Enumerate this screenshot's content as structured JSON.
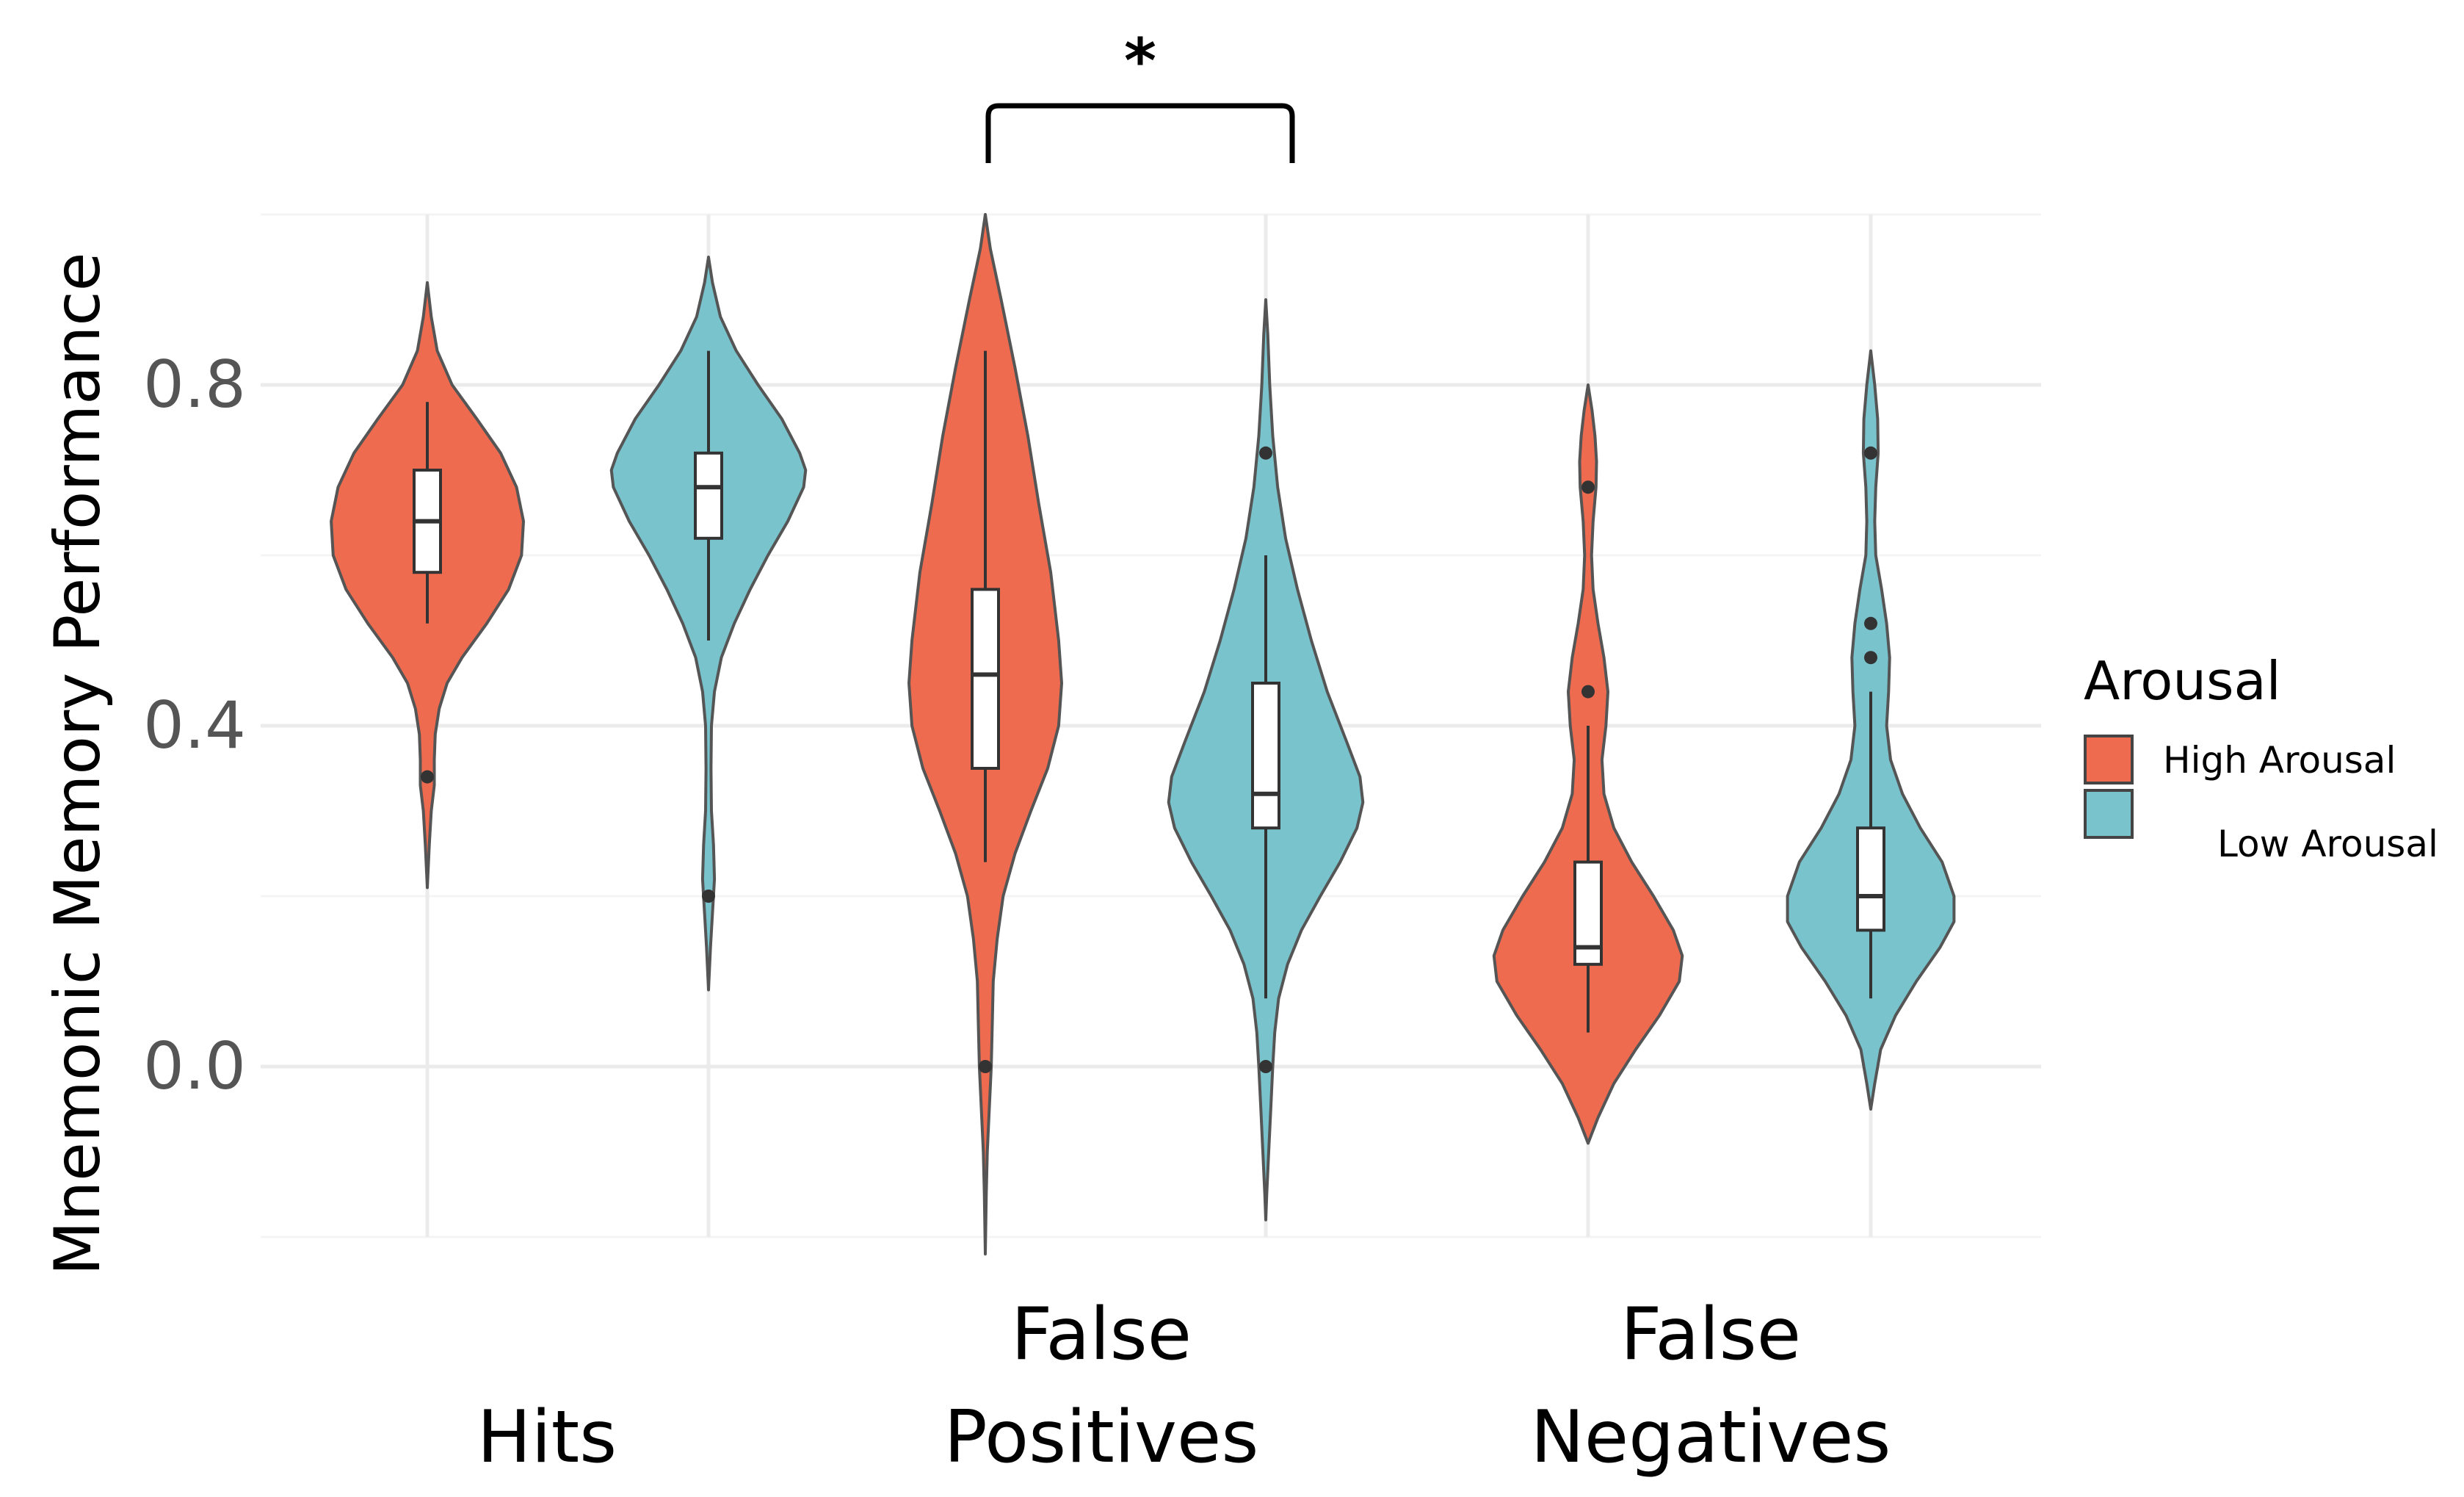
{
  "chart_data": {
    "type": "violin",
    "ylabel": "Mnemonic Memory Performance",
    "xlabel": "",
    "ylim": [
      -0.2,
      1.0
    ],
    "yticks": [
      0.0,
      0.4,
      0.8
    ],
    "ytick_labels": [
      "0.0",
      "0.4",
      "0.8"
    ],
    "categories": [
      {
        "name": "Hits",
        "lines": [
          "Hits"
        ]
      },
      {
        "name": "False Positives",
        "lines": [
          "False",
          "Positives"
        ]
      },
      {
        "name": "False Negatives",
        "lines": [
          "False",
          "Negatives"
        ]
      }
    ],
    "legend": {
      "title": "Arousal",
      "position": "right",
      "entries": [
        {
          "label": "High Arousal",
          "color": "#EE6B4F"
        },
        {
          "label": "Low Arousal",
          "color": "#79C3CD"
        }
      ]
    },
    "significance": {
      "between": [
        "False Positives - High Arousal",
        "False Positives - Low Arousal"
      ],
      "label": "*"
    },
    "series": [
      {
        "category": "Hits",
        "group": "High Arousal",
        "color": "#EE6B4F",
        "density": [
          [
            0.92,
            0
          ],
          [
            0.88,
            0.04
          ],
          [
            0.84,
            0.1
          ],
          [
            0.8,
            0.25
          ],
          [
            0.76,
            0.5
          ],
          [
            0.72,
            0.74
          ],
          [
            0.68,
            0.9
          ],
          [
            0.64,
            0.97
          ],
          [
            0.6,
            0.95
          ],
          [
            0.56,
            0.82
          ],
          [
            0.52,
            0.6
          ],
          [
            0.48,
            0.35
          ],
          [
            0.45,
            0.2
          ],
          [
            0.42,
            0.12
          ],
          [
            0.39,
            0.08
          ],
          [
            0.36,
            0.07
          ],
          [
            0.33,
            0.07
          ],
          [
            0.3,
            0.04
          ],
          [
            0.26,
            0.02
          ],
          [
            0.21,
            0
          ]
        ],
        "box": {
          "q1": 0.58,
          "median": 0.64,
          "q3": 0.7,
          "whisker_low": 0.52,
          "whisker_high": 0.78
        },
        "outliers": [
          0.34
        ]
      },
      {
        "category": "Hits",
        "group": "Low Arousal",
        "color": "#79C3CD",
        "density": [
          [
            0.95,
            0
          ],
          [
            0.92,
            0.04
          ],
          [
            0.88,
            0.12
          ],
          [
            0.84,
            0.28
          ],
          [
            0.8,
            0.5
          ],
          [
            0.76,
            0.74
          ],
          [
            0.72,
            0.92
          ],
          [
            0.7,
            0.98
          ],
          [
            0.68,
            0.96
          ],
          [
            0.64,
            0.8
          ],
          [
            0.6,
            0.6
          ],
          [
            0.56,
            0.42
          ],
          [
            0.52,
            0.26
          ],
          [
            0.48,
            0.13
          ],
          [
            0.44,
            0.06
          ],
          [
            0.4,
            0.03
          ],
          [
            0.35,
            0.025
          ],
          [
            0.3,
            0.03
          ],
          [
            0.26,
            0.05
          ],
          [
            0.22,
            0.06
          ],
          [
            0.18,
            0.04
          ],
          [
            0.14,
            0.02
          ],
          [
            0.09,
            0
          ]
        ],
        "box": {
          "q1": 0.62,
          "median": 0.68,
          "q3": 0.72,
          "whisker_low": 0.5,
          "whisker_high": 0.84
        },
        "outliers": [
          0.2
        ]
      },
      {
        "category": "False Positives",
        "group": "High Arousal",
        "color": "#EE6B4F",
        "density": [
          [
            1.0,
            0
          ],
          [
            0.96,
            0.05
          ],
          [
            0.9,
            0.16
          ],
          [
            0.82,
            0.3
          ],
          [
            0.74,
            0.43
          ],
          [
            0.66,
            0.54
          ],
          [
            0.58,
            0.66
          ],
          [
            0.5,
            0.74
          ],
          [
            0.45,
            0.77
          ],
          [
            0.4,
            0.74
          ],
          [
            0.35,
            0.63
          ],
          [
            0.3,
            0.46
          ],
          [
            0.25,
            0.3
          ],
          [
            0.2,
            0.18
          ],
          [
            0.15,
            0.12
          ],
          [
            0.1,
            0.08
          ],
          [
            0.05,
            0.07
          ],
          [
            0.0,
            0.06
          ],
          [
            -0.05,
            0.04
          ],
          [
            -0.1,
            0.02
          ],
          [
            -0.15,
            0.01
          ],
          [
            -0.22,
            0
          ]
        ],
        "box": {
          "q1": 0.35,
          "median": 0.46,
          "q3": 0.56,
          "whisker_low": 0.24,
          "whisker_high": 0.84
        },
        "outliers": [
          0.0
        ]
      },
      {
        "category": "False Positives",
        "group": "Low Arousal",
        "color": "#79C3CD",
        "density": [
          [
            0.9,
            0
          ],
          [
            0.86,
            0.02
          ],
          [
            0.8,
            0.04
          ],
          [
            0.74,
            0.07
          ],
          [
            0.68,
            0.12
          ],
          [
            0.62,
            0.2
          ],
          [
            0.56,
            0.32
          ],
          [
            0.5,
            0.46
          ],
          [
            0.44,
            0.62
          ],
          [
            0.38,
            0.82
          ],
          [
            0.34,
            0.95
          ],
          [
            0.31,
            0.98
          ],
          [
            0.28,
            0.92
          ],
          [
            0.24,
            0.75
          ],
          [
            0.2,
            0.55
          ],
          [
            0.16,
            0.36
          ],
          [
            0.12,
            0.22
          ],
          [
            0.08,
            0.13
          ],
          [
            0.04,
            0.09
          ],
          [
            0.0,
            0.07
          ],
          [
            -0.05,
            0.05
          ],
          [
            -0.1,
            0.03
          ],
          [
            -0.15,
            0.01
          ],
          [
            -0.18,
            0
          ]
        ],
        "box": {
          "q1": 0.28,
          "median": 0.32,
          "q3": 0.45,
          "whisker_low": 0.08,
          "whisker_high": 0.6
        },
        "outliers": [
          0.72,
          0.0
        ]
      },
      {
        "category": "False Negatives",
        "group": "High Arousal",
        "color": "#EE6B4F",
        "density": [
          [
            0.8,
            0
          ],
          [
            0.77,
            0.04
          ],
          [
            0.74,
            0.07
          ],
          [
            0.71,
            0.085
          ],
          [
            0.68,
            0.08
          ],
          [
            0.64,
            0.05
          ],
          [
            0.6,
            0.035
          ],
          [
            0.56,
            0.05
          ],
          [
            0.52,
            0.1
          ],
          [
            0.48,
            0.16
          ],
          [
            0.44,
            0.2
          ],
          [
            0.4,
            0.18
          ],
          [
            0.36,
            0.14
          ],
          [
            0.32,
            0.16
          ],
          [
            0.28,
            0.26
          ],
          [
            0.24,
            0.44
          ],
          [
            0.2,
            0.66
          ],
          [
            0.16,
            0.86
          ],
          [
            0.13,
            0.95
          ],
          [
            0.1,
            0.92
          ],
          [
            0.06,
            0.72
          ],
          [
            0.02,
            0.48
          ],
          [
            -0.02,
            0.26
          ],
          [
            -0.06,
            0.1
          ],
          [
            -0.09,
            0
          ]
        ],
        "box": {
          "q1": 0.12,
          "median": 0.14,
          "q3": 0.24,
          "whisker_low": 0.04,
          "whisker_high": 0.4
        },
        "outliers": [
          0.68,
          0.44
        ]
      },
      {
        "category": "False Negatives",
        "group": "Low Arousal",
        "color": "#79C3CD",
        "density": [
          [
            0.84,
            0
          ],
          [
            0.8,
            0.04
          ],
          [
            0.76,
            0.07
          ],
          [
            0.72,
            0.075
          ],
          [
            0.68,
            0.05
          ],
          [
            0.64,
            0.04
          ],
          [
            0.6,
            0.05
          ],
          [
            0.56,
            0.11
          ],
          [
            0.52,
            0.16
          ],
          [
            0.48,
            0.19
          ],
          [
            0.44,
            0.18
          ],
          [
            0.4,
            0.16
          ],
          [
            0.36,
            0.2
          ],
          [
            0.32,
            0.32
          ],
          [
            0.28,
            0.5
          ],
          [
            0.24,
            0.72
          ],
          [
            0.2,
            0.84
          ],
          [
            0.17,
            0.84
          ],
          [
            0.14,
            0.7
          ],
          [
            0.1,
            0.46
          ],
          [
            0.06,
            0.25
          ],
          [
            0.02,
            0.1
          ],
          [
            -0.02,
            0.04
          ],
          [
            -0.05,
            0
          ]
        ],
        "box": {
          "q1": 0.16,
          "median": 0.2,
          "q3": 0.28,
          "whisker_low": 0.08,
          "whisker_high": 0.44
        },
        "outliers": [
          0.72,
          0.52,
          0.48
        ]
      }
    ]
  }
}
